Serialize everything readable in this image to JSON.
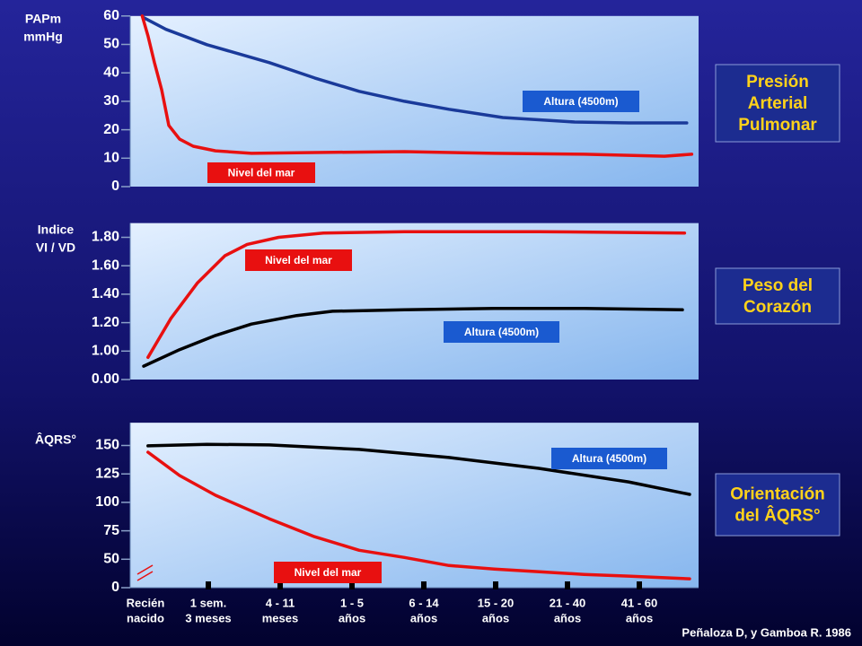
{
  "chart_data": [
    {
      "type": "line",
      "scale": "even-ticks",
      "y_label": [
        "PAPm",
        "mmHg"
      ],
      "ylim": [
        0,
        60
      ],
      "yticks": [
        0,
        10,
        20,
        30,
        40,
        50,
        60
      ],
      "side_title": [
        "Presión",
        "Arterial",
        "Pulmonar"
      ],
      "series": [
        {
          "name": "Altura (4500m)",
          "color": "#1a3a9a",
          "x": [
            0.1,
            0.41,
            0.98,
            1.85,
            2.48,
            3.1,
            3.73,
            4.35,
            5.1,
            6.1,
            6.85,
            7.66
          ],
          "values": [
            59.4,
            55.3,
            49.9,
            43.6,
            38.2,
            33.5,
            30.0,
            27.2,
            24.3,
            22.7,
            22.4,
            22.4
          ]
        },
        {
          "name": "Nivel del mar",
          "color": "#e81010",
          "x": [
            0.08,
            0.16,
            0.25,
            0.35,
            0.45,
            0.6,
            0.79,
            1.1,
            1.6,
            2.48,
            3.73,
            4.98,
            6.23,
            7.35,
            7.73
          ],
          "values": [
            60,
            53,
            43.6,
            34.1,
            21.5,
            16.7,
            14.2,
            12.6,
            11.7,
            12.0,
            12.3,
            11.7,
            11.4,
            10.7,
            11.4
          ]
        }
      ]
    },
    {
      "type": "line",
      "scale": "even-ticks",
      "y_label": [
        "Indice",
        "VI / VD"
      ],
      "ylim": [
        0,
        1.9
      ],
      "yticks": [
        {
          "value": 0,
          "label": "0.00"
        },
        {
          "value": 1,
          "label": "1.00"
        },
        {
          "value": 1.2,
          "label": "1.20"
        },
        {
          "value": 1.4,
          "label": "1.40"
        },
        {
          "value": 1.6,
          "label": "1.60"
        },
        {
          "value": 1.8,
          "label": "1.80"
        }
      ],
      "side_title": [
        "Peso del",
        "Corazón"
      ],
      "series": [
        {
          "name": "Nivel del mar",
          "color": "#e81010",
          "x": [
            0.16,
            0.48,
            0.85,
            1.23,
            1.54,
            1.98,
            2.6,
            3.73,
            5.6,
            7.63
          ],
          "values": [
            0.78,
            1.23,
            1.48,
            1.67,
            1.75,
            1.8,
            1.83,
            1.84,
            1.84,
            1.83
          ]
        },
        {
          "name": "Altura (4500m)",
          "color": "#000000",
          "x": [
            0.1,
            0.6,
            1.1,
            1.6,
            2.23,
            2.73,
            3.73,
            4.98,
            6.23,
            7.6
          ],
          "values": [
            0.47,
            1.01,
            1.11,
            1.19,
            1.25,
            1.28,
            1.29,
            1.3,
            1.3,
            1.29
          ]
        }
      ]
    },
    {
      "type": "line",
      "scale": "even-ticks",
      "y_label": [
        "ÂQRS°"
      ],
      "ylim": [
        0,
        170
      ],
      "yticks": [
        0,
        50,
        75,
        100,
        125,
        150
      ],
      "side_title": [
        "Orientación",
        "del ÂQRS°"
      ],
      "categories": [
        [
          "Recién",
          "nacido"
        ],
        [
          "1 sem.",
          "3 meses"
        ],
        [
          "4 - 11",
          "meses"
        ],
        [
          "1 - 5",
          "años"
        ],
        [
          "6 - 14",
          "años"
        ],
        [
          "15 - 20",
          "años"
        ],
        [
          "21 - 40",
          "años"
        ],
        [
          "41 - 60",
          "años"
        ]
      ],
      "series": [
        {
          "name": "Altura (4500m)",
          "color": "#000000",
          "x": [
            0.16,
            0.98,
            1.85,
            3.1,
            4.35,
            5.6,
            6.85,
            7.7
          ],
          "values": [
            149.7,
            151,
            150.5,
            146.5,
            139.4,
            129.9,
            118,
            107
          ]
        },
        {
          "name": "Nivel del mar",
          "color": "#e81010",
          "x": [
            0.16,
            0.6,
            1.1,
            1.85,
            2.48,
            3.1,
            3.73,
            4.35,
            4.98,
            6.23,
            6.85,
            7.7
          ],
          "values": [
            144.1,
            123.6,
            106.2,
            85.6,
            69.8,
            57.9,
            51.6,
            39,
            32.8,
            23.4,
            20.3,
            15.6
          ]
        }
      ]
    }
  ],
  "credit": "Peñaloza D, y Gamboa R. 1986"
}
